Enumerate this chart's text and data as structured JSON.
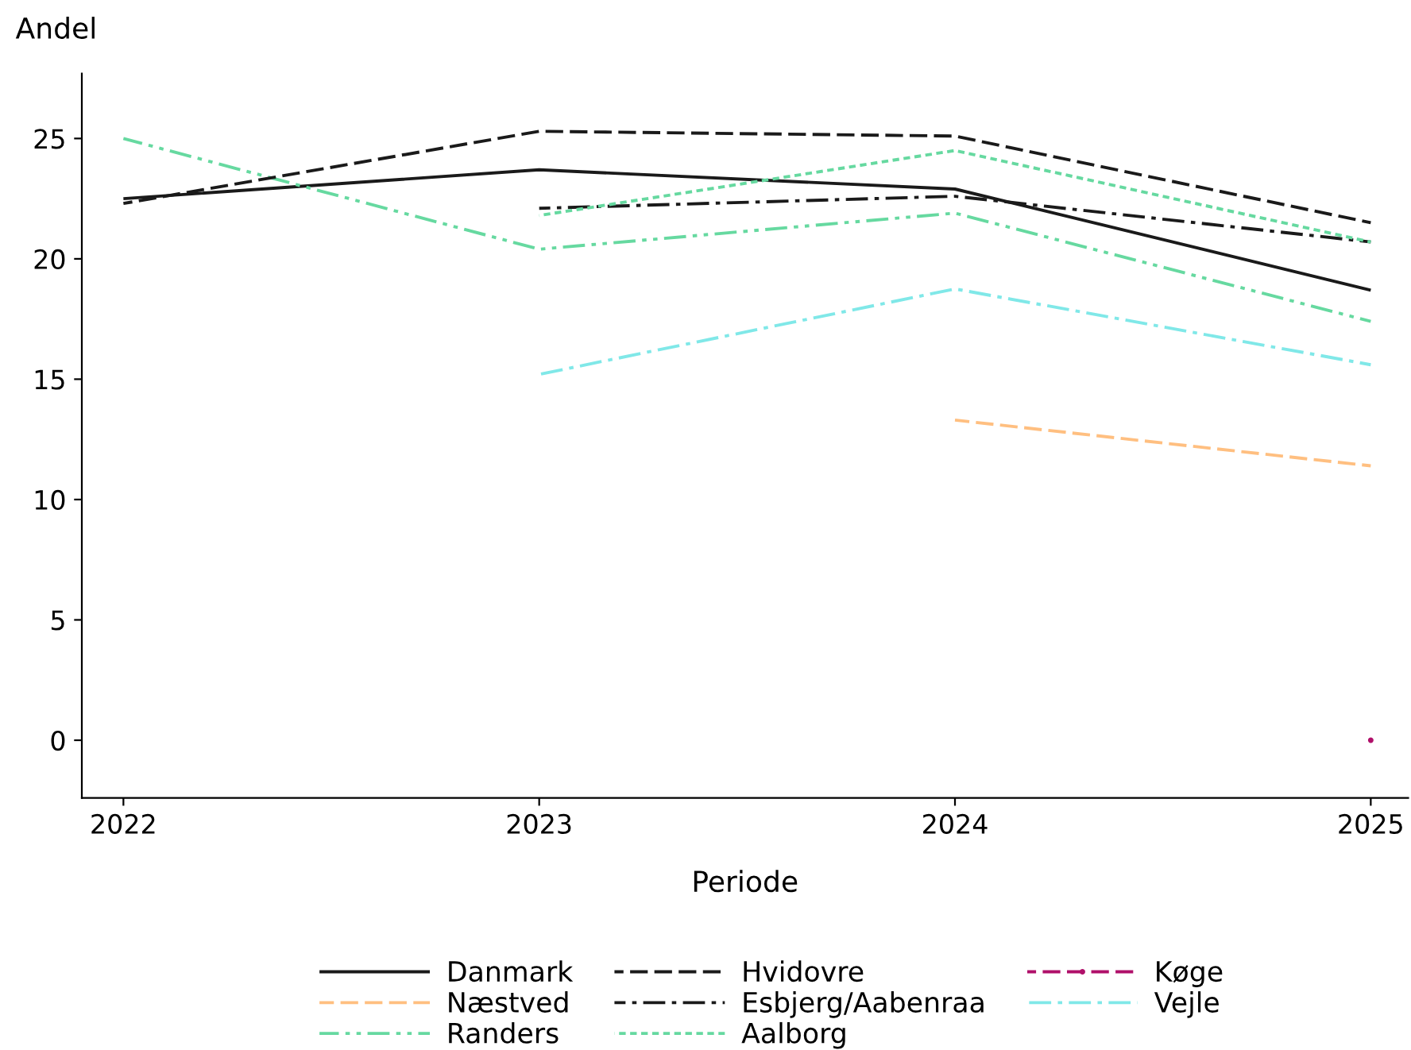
{
  "chart_data": {
    "type": "line",
    "xlabel": "Periode",
    "ylabel": "Andel",
    "x": [
      2022,
      2023,
      2024,
      2025
    ],
    "xlim": [
      2021.9,
      2025.09
    ],
    "xticks": [
      2022,
      2023,
      2024,
      2025
    ],
    "ylim": [
      -2.4,
      27.7
    ],
    "yticks": [
      0,
      5,
      10,
      15,
      20,
      25
    ],
    "grid": false,
    "legend": "bottom",
    "marker": "none",
    "series": [
      {
        "name": "Danmark",
        "color": "#1a1a1a",
        "line_style": "solid",
        "values": [
          22.5,
          23.7,
          22.9,
          18.7
        ]
      },
      {
        "name": "Næstved",
        "color": "#ffbf80",
        "line_style": "dashed",
        "values": [
          null,
          null,
          13.3,
          11.4
        ]
      },
      {
        "name": "Randers",
        "color": "#66d9a0",
        "line_style": "dashdotdot",
        "values": [
          25.0,
          20.4,
          21.9,
          17.4
        ]
      },
      {
        "name": "Hvidovre",
        "color": "#1a1a1a",
        "line_style": "dashed",
        "values": [
          22.3,
          25.3,
          25.1,
          21.5
        ]
      },
      {
        "name": "Esbjerg/Aabenraa",
        "color": "#1a1a1a",
        "line_style": "dashdot",
        "values": [
          null,
          22.1,
          22.6,
          20.7
        ]
      },
      {
        "name": "Aalborg",
        "color": "#66d9a0",
        "line_style": "dotted",
        "values": [
          null,
          21.8,
          24.5,
          20.7
        ]
      },
      {
        "name": "Køge",
        "color": "#b0106a",
        "line_style": "dashed",
        "marker": "circle",
        "values": [
          null,
          null,
          null,
          0
        ]
      },
      {
        "name": "Vejle",
        "color": "#80e8e8",
        "line_style": "dashdot",
        "values": [
          null,
          15.2,
          18.75,
          15.6
        ]
      }
    ]
  }
}
